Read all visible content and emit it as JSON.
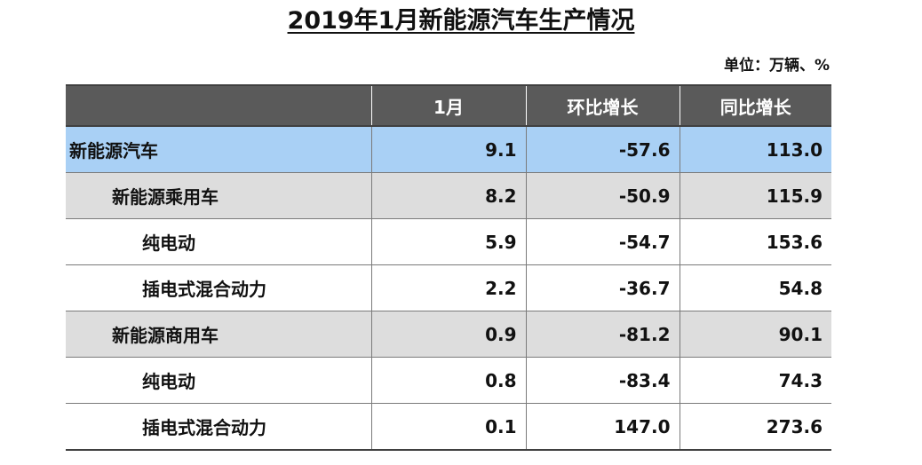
{
  "title": "2019年1月新能源汽车生产情况",
  "unit": "单位：万辆、%",
  "table": {
    "headers": [
      "",
      "1月",
      "环比增长",
      "同比增长"
    ],
    "rows": [
      {
        "name": "新能源汽车",
        "v1": "9.1",
        "v2": "-57.6",
        "v3": "113.0"
      },
      {
        "name": "新能源乘用车",
        "v1": "8.2",
        "v2": "-50.9",
        "v3": "115.9"
      },
      {
        "name": "纯电动",
        "v1": "5.9",
        "v2": "-54.7",
        "v3": "153.6"
      },
      {
        "name": "插电式混合动力",
        "v1": "2.2",
        "v2": "-36.7",
        "v3": "54.8"
      },
      {
        "name": "新能源商用车",
        "v1": "0.9",
        "v2": "-81.2",
        "v3": "90.1"
      },
      {
        "name": "纯电动",
        "v1": "0.8",
        "v2": "-83.4",
        "v3": "74.3"
      },
      {
        "name": "插电式混合动力",
        "v1": "0.1",
        "v2": "147.0",
        "v3": "273.6"
      }
    ]
  },
  "colors": {
    "header_bg": "#5a5a5a",
    "total_row_bg": "#a9d0f5",
    "category_row_bg": "#dddddd",
    "item_row_bg": "#ffffff"
  }
}
